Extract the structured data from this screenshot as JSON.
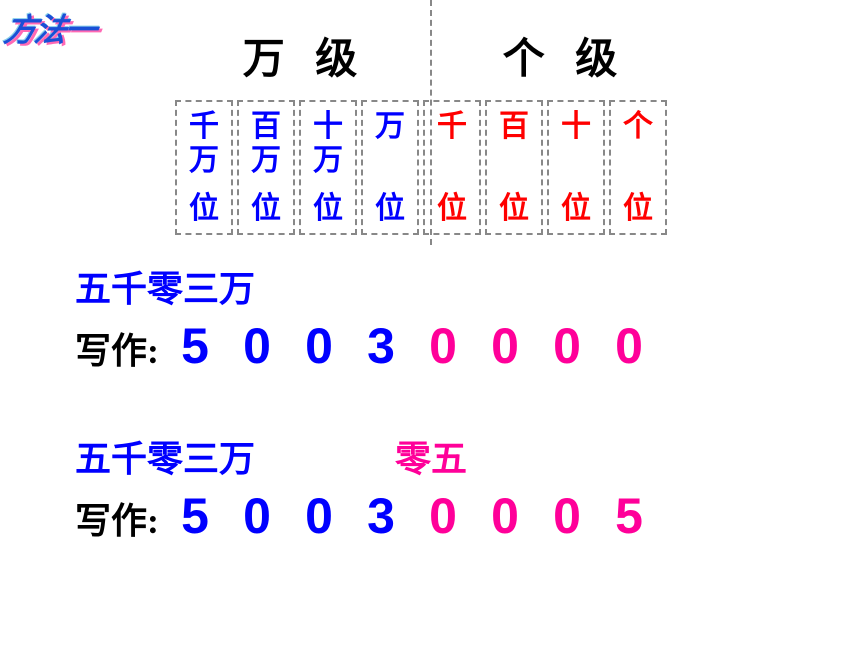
{
  "method_label": {
    "text": "方法一",
    "color": "#1a4fd6",
    "shadow": "#ff69b4"
  },
  "levels": {
    "wan": "万 级",
    "ge": "个 级"
  },
  "places": [
    {
      "top": "千",
      "mid": "万",
      "bot": "位",
      "color": "#0000ff"
    },
    {
      "top": "百",
      "mid": "万",
      "bot": "位",
      "color": "#0000ff"
    },
    {
      "top": "十",
      "mid": "万",
      "bot": "位",
      "color": "#0000ff"
    },
    {
      "top": "万",
      "mid": "",
      "bot": "位",
      "color": "#0000ff"
    },
    {
      "top": "千",
      "mid": "",
      "bot": "位",
      "color": "#ff0000"
    },
    {
      "top": "百",
      "mid": "",
      "bot": "位",
      "color": "#ff0000"
    },
    {
      "top": "十",
      "mid": "",
      "bot": "位",
      "color": "#ff0000"
    },
    {
      "top": "个",
      "mid": "",
      "bot": "位",
      "color": "#ff0000"
    }
  ],
  "example1": {
    "chinese": "五千零三万",
    "chinese_color": "#0000ff",
    "write_label": "写作:",
    "digits": [
      {
        "d": "5",
        "c": "#0000ff"
      },
      {
        "d": "0",
        "c": "#0000ff"
      },
      {
        "d": "0",
        "c": "#0000ff"
      },
      {
        "d": "3",
        "c": "#0000ff"
      },
      {
        "d": "0",
        "c": "#ff0099"
      },
      {
        "d": "0",
        "c": "#ff0099"
      },
      {
        "d": "0",
        "c": "#ff0099"
      },
      {
        "d": "0",
        "c": "#ff0099"
      }
    ]
  },
  "example2": {
    "chinese_part1": "五千零三万",
    "chinese_part2": "零五",
    "part1_color": "#0000ff",
    "part2_color": "#ff0099",
    "write_label": "写作:",
    "digits": [
      {
        "d": "5",
        "c": "#0000ff"
      },
      {
        "d": "0",
        "c": "#0000ff"
      },
      {
        "d": "0",
        "c": "#0000ff"
      },
      {
        "d": "3",
        "c": "#0000ff"
      },
      {
        "d": "0",
        "c": "#ff0099"
      },
      {
        "d": "0",
        "c": "#ff0099"
      },
      {
        "d": "0",
        "c": "#ff0099"
      },
      {
        "d": "5",
        "c": "#ff0099"
      }
    ]
  }
}
